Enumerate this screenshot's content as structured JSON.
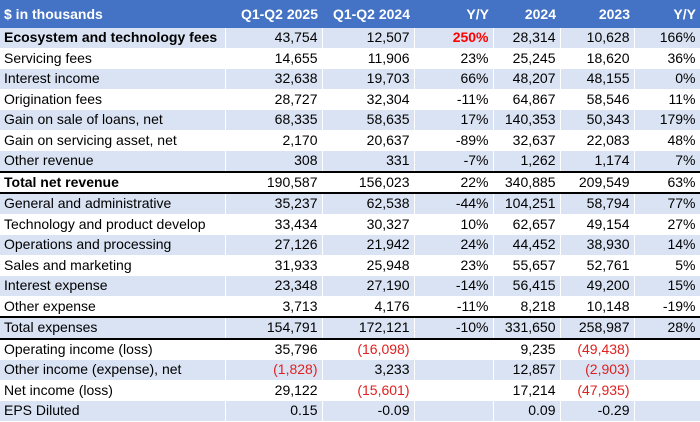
{
  "table": {
    "header": [
      "$ in thousands",
      "Q1-Q2 2025",
      "Q1-Q2 2024",
      "Y/Y",
      "2024",
      "2023",
      "Y/Y"
    ],
    "rows": [
      [
        "Ecosystem and technology fees",
        "43,754",
        "12,507",
        "250%",
        "28,314",
        "10,628",
        "166%"
      ],
      [
        "Servicing fees",
        "14,655",
        "11,906",
        "23%",
        "25,245",
        "18,620",
        "36%"
      ],
      [
        "Interest income",
        "32,638",
        "19,703",
        "66%",
        "48,207",
        "48,155",
        "0%"
      ],
      [
        "Origination fees",
        "28,727",
        "32,304",
        "-11%",
        "64,867",
        "58,546",
        "11%"
      ],
      [
        "Gain on sale of loans, net",
        "68,335",
        "58,635",
        "17%",
        "140,353",
        "50,343",
        "179%"
      ],
      [
        "Gain on servicing asset, net",
        "2,170",
        "20,637",
        "-89%",
        "32,637",
        "22,083",
        "48%"
      ],
      [
        "Other revenue",
        "308",
        "331",
        "-7%",
        "1,262",
        "1,174",
        "7%"
      ],
      [
        "Total net revenue",
        "190,587",
        "156,023",
        "22%",
        "340,885",
        "209,549",
        "63%"
      ],
      [
        "General and administrative",
        "35,237",
        "62,538",
        "-44%",
        "104,251",
        "58,794",
        "77%"
      ],
      [
        "Technology and product develop",
        "33,434",
        "30,327",
        "10%",
        "62,657",
        "49,154",
        "27%"
      ],
      [
        "Operations and processing",
        "27,126",
        "21,942",
        "24%",
        "44,452",
        "38,930",
        "14%"
      ],
      [
        "Sales and marketing",
        "31,933",
        "25,948",
        "23%",
        "55,657",
        "52,761",
        "5%"
      ],
      [
        "Interest expense",
        "23,348",
        "27,190",
        "-14%",
        "56,415",
        "49,200",
        "15%"
      ],
      [
        "Other expense",
        "3,713",
        "4,176",
        "-11%",
        "8,218",
        "10,148",
        "-19%"
      ],
      [
        "Total expenses",
        "154,791",
        "172,121",
        "-10%",
        "331,650",
        "258,987",
        "28%"
      ],
      [
        "Operating income (loss)",
        "35,796",
        "(16,098)",
        null,
        "9,235",
        "(49,438)",
        null
      ],
      [
        "Other income (expense), net",
        "(1,828)",
        "3,233",
        null,
        "12,857",
        "(2,903)",
        null
      ],
      [
        "Net income (loss)",
        "29,122",
        "(15,601)",
        null,
        "17,214",
        "(47,935)",
        null
      ],
      [
        "EPS Diluted",
        "0.15",
        "-0.09",
        null,
        "0.09",
        "-0.29",
        null
      ]
    ]
  }
}
